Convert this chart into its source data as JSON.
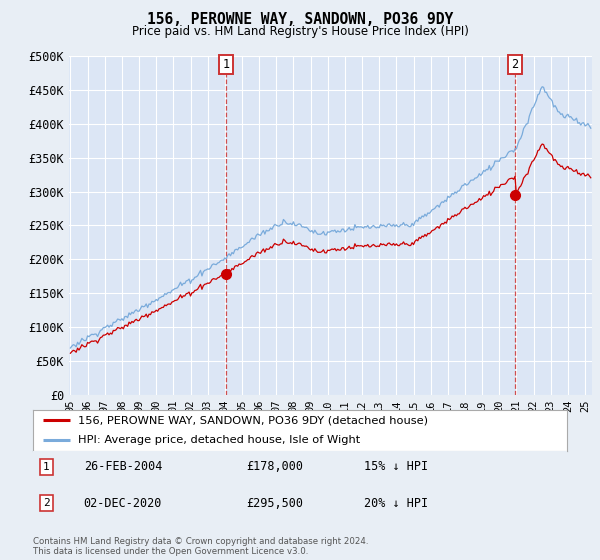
{
  "title": "156, PEROWNE WAY, SANDOWN, PO36 9DY",
  "subtitle": "Price paid vs. HM Land Registry's House Price Index (HPI)",
  "bg_color": "#e8eef5",
  "plot_bg_color": "#dce6f5",
  "grid_color": "#ffffff",
  "ylim": [
    0,
    500000
  ],
  "yticks": [
    0,
    50000,
    100000,
    150000,
    200000,
    250000,
    300000,
    350000,
    400000,
    450000,
    500000
  ],
  "ytick_labels": [
    "£0",
    "£50K",
    "£100K",
    "£150K",
    "£200K",
    "£250K",
    "£300K",
    "£350K",
    "£400K",
    "£450K",
    "£500K"
  ],
  "sale1_price": 178000,
  "sale2_price": 295500,
  "legend_line1": "156, PEROWNE WAY, SANDOWN, PO36 9DY (detached house)",
  "legend_line2": "HPI: Average price, detached house, Isle of Wight",
  "annotation1": "26-FEB-2004",
  "annotation1_price": "£178,000",
  "annotation1_pct": "15% ↓ HPI",
  "annotation2": "02-DEC-2020",
  "annotation2_price": "£295,500",
  "annotation2_pct": "20% ↓ HPI",
  "footer": "Contains HM Land Registry data © Crown copyright and database right 2024.\nThis data is licensed under the Open Government Licence v3.0.",
  "hpi_color": "#7aabdb",
  "price_color": "#cc0000",
  "sale_dot_color": "#cc0000",
  "dashed_color": "#cc3333"
}
